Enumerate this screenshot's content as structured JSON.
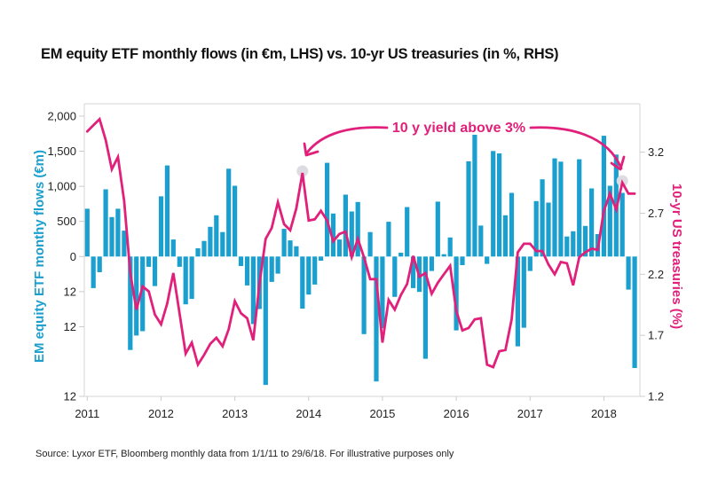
{
  "chart_data": {
    "type": "bar+line",
    "title": "EM equity ETF monthly flows (in €m, LHS) vs. 10-yr US treasuries (in %, RHS)",
    "source": "Source: Lyxor ETF, Bloomberg monthly data from 1/1/11 to 29/6/18. For illustrative purposes only",
    "colors": {
      "bars": "#1a9fcf",
      "line": "#e0207a",
      "highlight": "#dcdce2",
      "axis": "#dddddd"
    },
    "x_ticks": [
      "2011",
      "2012",
      "2013",
      "2014",
      "2015",
      "2016",
      "2017",
      "2018"
    ],
    "start_month": "2011-01",
    "left_axis": {
      "label": "EM equity ETF monthy flows (€m)",
      "range": [
        -2000,
        2000
      ],
      "ticks": [
        {
          "value": 2000,
          "label": "2,000"
        },
        {
          "value": 1500,
          "label": "1,500"
        },
        {
          "value": 1000,
          "label": "1,000"
        },
        {
          "value": 500,
          "label": "500"
        },
        {
          "value": 0,
          "label": "0"
        },
        {
          "value": -500,
          "label": "12"
        },
        {
          "value": -1000,
          "label": "12"
        },
        {
          "value": -2000,
          "label": "12"
        }
      ]
    },
    "right_axis": {
      "label": "10-yr US treasuries (%)",
      "range": [
        1.2,
        3.6
      ],
      "ticks": [
        {
          "value": 3.2,
          "label": "3.2"
        },
        {
          "value": 2.7,
          "label": "2.7"
        },
        {
          "value": 2.2,
          "label": "2.2"
        },
        {
          "value": 1.7,
          "label": "1.7"
        },
        {
          "value": 1.2,
          "label": "1.2"
        }
      ]
    },
    "series": [
      {
        "name": "EM equity ETF monthly flows (€m)",
        "type": "bar",
        "axis": "left",
        "values": [
          680,
          -450,
          -223,
          957,
          562,
          680,
          369,
          -1330,
          -1120,
          -1058,
          -147,
          -420,
          857,
          1297,
          243,
          -147,
          -680,
          -604,
          117,
          222,
          423,
          587,
          348,
          1250,
          1007,
          -135,
          -412,
          -962,
          -748,
          -1835,
          -361,
          -244,
          394,
          230,
          146,
          -743,
          -542,
          -399,
          -59,
          1335,
          612,
          243,
          881,
          642,
          776,
          -1100,
          348,
          -1785,
          -1016,
          495,
          -575,
          54,
          705,
          -450,
          -504,
          -1457,
          -206,
          781,
          33,
          272,
          -1046,
          -122,
          1356,
          1733,
          441,
          -105,
          1503,
          1469,
          587,
          907,
          -1277,
          -1008,
          -206,
          789,
          1100,
          768,
          1398,
          1351,
          285,
          360,
          1385,
          436,
          970,
          319,
          1720,
          1007,
          1452,
          907,
          -471,
          -1590
        ]
      },
      {
        "name": "10-yr US treasuries (%)",
        "type": "line",
        "axis": "right",
        "values": [
          3.37,
          3.42,
          3.47,
          3.3,
          3.06,
          3.16,
          2.8,
          2.21,
          1.91,
          2.1,
          2.06,
          1.87,
          1.79,
          1.96,
          2.21,
          1.88,
          1.55,
          1.64,
          1.46,
          1.54,
          1.63,
          1.68,
          1.61,
          1.75,
          1.98,
          1.88,
          1.84,
          1.66,
          2.12,
          2.49,
          2.58,
          2.79,
          2.61,
          2.56,
          2.74,
          3.03,
          2.64,
          2.65,
          2.72,
          2.64,
          2.47,
          2.53,
          2.55,
          2.34,
          2.49,
          2.34,
          2.16,
          2.16,
          1.64,
          1.99,
          1.91,
          2.03,
          2.12,
          2.35,
          2.18,
          2.21,
          2.04,
          2.13,
          2.2,
          2.27,
          1.9,
          1.74,
          1.76,
          1.83,
          1.84,
          1.46,
          1.44,
          1.57,
          1.58,
          1.83,
          2.38,
          2.45,
          2.45,
          2.39,
          2.39,
          2.28,
          2.2,
          2.3,
          2.29,
          2.11,
          2.34,
          2.38,
          2.41,
          2.4,
          2.72,
          2.86,
          2.73,
          2.95,
          2.86,
          2.86
        ]
      }
    ],
    "highlights": [
      35,
      87
    ],
    "annotation": "10 y yield above 3%",
    "grid": false,
    "legend": "none"
  }
}
